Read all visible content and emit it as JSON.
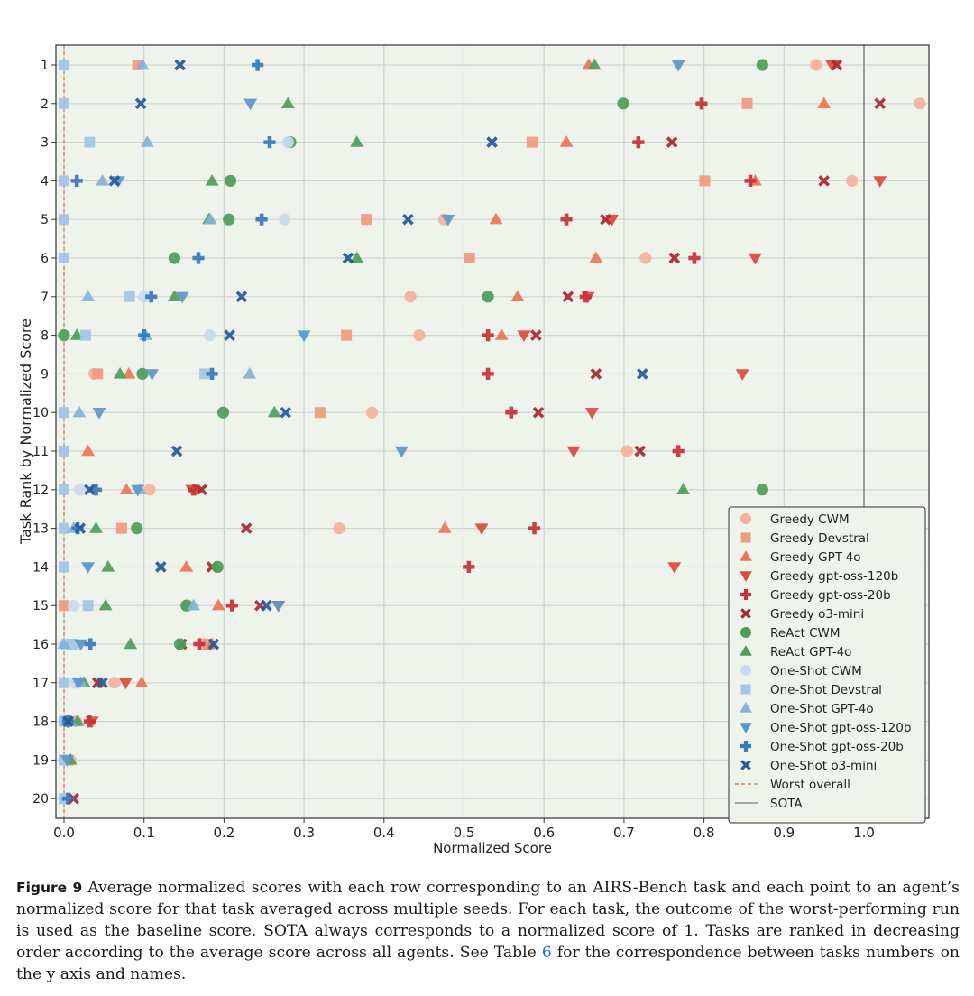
{
  "chart_data": {
    "type": "scatter",
    "xlabel": "Normalized Score",
    "ylabel": "Task Rank by Normalized Score",
    "xlim": [
      -0.01,
      1.08
    ],
    "x_ticks": [
      "0.0",
      "0.1",
      "0.2",
      "0.3",
      "0.4",
      "0.5",
      "0.6",
      "0.7",
      "0.8",
      "0.9",
      "1.0"
    ],
    "y_ticks": [
      "1",
      "2",
      "3",
      "4",
      "5",
      "6",
      "7",
      "8",
      "9",
      "10",
      "11",
      "12",
      "13",
      "14",
      "15",
      "16",
      "17",
      "18",
      "19",
      "20"
    ],
    "grid": true,
    "legend_position": "bottom-right",
    "reference_lines": [
      {
        "name": "Worst overall",
        "x": 0.0,
        "style": "dashed",
        "color": "#e0604a"
      },
      {
        "name": "SOTA",
        "x": 1.0,
        "style": "solid",
        "color": "#7a7a7a"
      }
    ],
    "series": [
      {
        "name": "Greedy CWM",
        "marker": "circle",
        "color": "#f4b29a",
        "points": [
          [
            0.94,
            1
          ],
          [
            1.07,
            2
          ],
          [
            0.985,
            4
          ],
          [
            0.475,
            5
          ],
          [
            0.727,
            6
          ],
          [
            0.433,
            7
          ],
          [
            0.444,
            8
          ],
          [
            0.038,
            9
          ],
          [
            0.385,
            10
          ],
          [
            0.704,
            11
          ],
          [
            0.107,
            12
          ],
          [
            0.344,
            13
          ],
          [
            0.155,
            15
          ],
          [
            0.175,
            16
          ],
          [
            0.063,
            17
          ],
          [
            0.015,
            18
          ],
          [
            0.008,
            19
          ]
        ]
      },
      {
        "name": "Greedy Devstral",
        "marker": "square",
        "color": "#f09a7e",
        "points": [
          [
            0.092,
            1
          ],
          [
            0.854,
            2
          ],
          [
            0.585,
            3
          ],
          [
            0.801,
            4
          ],
          [
            0.378,
            5
          ],
          [
            0.507,
            6
          ],
          [
            0.353,
            8
          ],
          [
            0.042,
            9
          ],
          [
            0.32,
            10
          ],
          [
            0.072,
            13
          ],
          [
            0.0,
            15
          ],
          [
            0.18,
            16
          ]
        ]
      },
      {
        "name": "Greedy GPT-4o",
        "marker": "triangle-up",
        "color": "#ee7558",
        "points": [
          [
            0.656,
            1
          ],
          [
            0.95,
            2
          ],
          [
            0.628,
            3
          ],
          [
            0.864,
            4
          ],
          [
            0.54,
            5
          ],
          [
            0.665,
            6
          ],
          [
            0.567,
            7
          ],
          [
            0.547,
            8
          ],
          [
            0.081,
            9
          ],
          [
            0.03,
            11
          ],
          [
            0.078,
            12
          ],
          [
            0.476,
            13
          ],
          [
            0.153,
            14
          ],
          [
            0.193,
            15
          ],
          [
            0.185,
            16
          ],
          [
            0.097,
            17
          ]
        ]
      },
      {
        "name": "Greedy gpt-oss-120b",
        "marker": "triangle-down",
        "color": "#dd4a3a",
        "points": [
          [
            0.96,
            1
          ],
          [
            1.02,
            4
          ],
          [
            0.685,
            5
          ],
          [
            0.864,
            6
          ],
          [
            0.655,
            7
          ],
          [
            0.575,
            8
          ],
          [
            0.848,
            9
          ],
          [
            0.66,
            10
          ],
          [
            0.637,
            11
          ],
          [
            0.16,
            12
          ],
          [
            0.522,
            13
          ],
          [
            0.763,
            14
          ],
          [
            0.268,
            15
          ],
          [
            0.077,
            17
          ],
          [
            0.035,
            18
          ]
        ]
      },
      {
        "name": "Greedy gpt-oss-20b",
        "marker": "plus",
        "color": "#c8313a",
        "points": [
          [
            0.797,
            2
          ],
          [
            0.718,
            3
          ],
          [
            0.858,
            4
          ],
          [
            0.628,
            5
          ],
          [
            0.788,
            6
          ],
          [
            0.652,
            7
          ],
          [
            0.53,
            8
          ],
          [
            0.53,
            9
          ],
          [
            0.559,
            10
          ],
          [
            0.768,
            11
          ],
          [
            0.163,
            12
          ],
          [
            0.588,
            13
          ],
          [
            0.506,
            14
          ],
          [
            0.21,
            15
          ],
          [
            0.169,
            16
          ],
          [
            0.032,
            18
          ]
        ]
      },
      {
        "name": "Greedy o3-mini",
        "marker": "x",
        "color": "#a8282f",
        "points": [
          [
            0.966,
            1
          ],
          [
            1.02,
            2
          ],
          [
            0.76,
            3
          ],
          [
            0.95,
            4
          ],
          [
            0.677,
            5
          ],
          [
            0.763,
            6
          ],
          [
            0.63,
            7
          ],
          [
            0.59,
            8
          ],
          [
            0.665,
            9
          ],
          [
            0.593,
            10
          ],
          [
            0.72,
            11
          ],
          [
            0.172,
            12
          ],
          [
            0.228,
            13
          ],
          [
            0.185,
            14
          ],
          [
            0.245,
            15
          ],
          [
            0.147,
            16
          ],
          [
            0.042,
            17
          ],
          [
            0.012,
            20
          ]
        ]
      },
      {
        "name": "ReAct CWM",
        "marker": "circle",
        "color": "#4c9e5a",
        "points": [
          [
            0.873,
            1
          ],
          [
            0.699,
            2
          ],
          [
            0.283,
            3
          ],
          [
            0.208,
            4
          ],
          [
            0.206,
            5
          ],
          [
            0.138,
            6
          ],
          [
            0.53,
            7
          ],
          [
            0.0,
            8
          ],
          [
            0.098,
            9
          ],
          [
            0.199,
            10
          ],
          [
            0.873,
            12
          ],
          [
            0.091,
            13
          ],
          [
            0.192,
            14
          ],
          [
            0.153,
            15
          ],
          [
            0.145,
            16
          ]
        ]
      },
      {
        "name": "ReAct GPT-4o",
        "marker": "triangle-up",
        "color": "#4c9e5a",
        "points": [
          [
            0.663,
            1
          ],
          [
            0.28,
            2
          ],
          [
            0.366,
            3
          ],
          [
            0.185,
            4
          ],
          [
            0.181,
            5
          ],
          [
            0.366,
            6
          ],
          [
            0.138,
            7
          ],
          [
            0.016,
            8
          ],
          [
            0.07,
            9
          ],
          [
            0.263,
            10
          ],
          [
            0.774,
            12
          ],
          [
            0.04,
            13
          ],
          [
            0.055,
            14
          ],
          [
            0.052,
            15
          ],
          [
            0.083,
            16
          ],
          [
            0.025,
            17
          ],
          [
            0.017,
            18
          ],
          [
            0.008,
            19
          ]
        ]
      },
      {
        "name": "One-Shot CWM",
        "marker": "circle",
        "color": "#c9dcee",
        "points": [
          [
            0.0,
            1
          ],
          [
            0.28,
            3
          ],
          [
            0.276,
            5
          ],
          [
            0.1,
            7
          ],
          [
            0.182,
            8
          ],
          [
            0.0,
            10
          ],
          [
            0.02,
            12
          ],
          [
            0.0,
            13
          ],
          [
            0.012,
            15
          ],
          [
            0.0,
            16
          ],
          [
            0.013,
            17
          ],
          [
            0.0,
            18
          ],
          [
            0.0,
            19
          ],
          [
            0.0,
            20
          ]
        ]
      },
      {
        "name": "One-Shot Devstral",
        "marker": "square",
        "color": "#a3c6e3",
        "points": [
          [
            0.0,
            1
          ],
          [
            0.0,
            2
          ],
          [
            0.032,
            3
          ],
          [
            0.0,
            4
          ],
          [
            0.0,
            5
          ],
          [
            0.0,
            6
          ],
          [
            0.082,
            7
          ],
          [
            0.027,
            8
          ],
          [
            0.176,
            9
          ],
          [
            0.0,
            10
          ],
          [
            0.0,
            11
          ],
          [
            0.0,
            12
          ],
          [
            0.0,
            13
          ],
          [
            0.0,
            14
          ],
          [
            0.03,
            15
          ],
          [
            0.01,
            16
          ],
          [
            0.0,
            17
          ],
          [
            0.0,
            18
          ],
          [
            0.0,
            19
          ],
          [
            0.0,
            20
          ]
        ]
      },
      {
        "name": "One-Shot GPT-4o",
        "marker": "triangle-up",
        "color": "#84b3d8",
        "points": [
          [
            0.098,
            1
          ],
          [
            0.104,
            3
          ],
          [
            0.048,
            4
          ],
          [
            0.183,
            5
          ],
          [
            0.03,
            7
          ],
          [
            0.102,
            8
          ],
          [
            0.232,
            9
          ],
          [
            0.019,
            10
          ],
          [
            0.095,
            12
          ],
          [
            0.012,
            13
          ],
          [
            0.162,
            15
          ],
          [
            0.0,
            16
          ],
          [
            0.021,
            17
          ],
          [
            0.008,
            18
          ]
        ]
      },
      {
        "name": "One-Shot gpt-oss-120b",
        "marker": "triangle-down",
        "color": "#5f96c8",
        "points": [
          [
            0.768,
            1
          ],
          [
            0.233,
            2
          ],
          [
            0.068,
            4
          ],
          [
            0.48,
            5
          ],
          [
            0.148,
            7
          ],
          [
            0.3,
            8
          ],
          [
            0.11,
            9
          ],
          [
            0.044,
            10
          ],
          [
            0.422,
            11
          ],
          [
            0.092,
            12
          ],
          [
            0.03,
            14
          ],
          [
            0.268,
            15
          ],
          [
            0.021,
            16
          ],
          [
            0.018,
            17
          ],
          [
            0.005,
            18
          ],
          [
            0.004,
            19
          ]
        ]
      },
      {
        "name": "One-Shot gpt-oss-20b",
        "marker": "plus",
        "color": "#3a78b8",
        "points": [
          [
            0.242,
            1
          ],
          [
            0.257,
            3
          ],
          [
            0.016,
            4
          ],
          [
            0.247,
            5
          ],
          [
            0.168,
            6
          ],
          [
            0.109,
            7
          ],
          [
            0.1,
            8
          ],
          [
            0.185,
            9
          ],
          [
            0.04,
            12
          ],
          [
            0.017,
            13
          ],
          [
            0.033,
            16
          ],
          [
            0.005,
            18
          ],
          [
            0.005,
            20
          ]
        ]
      },
      {
        "name": "One-Shot o3-mini",
        "marker": "x",
        "color": "#24589c",
        "points": [
          [
            0.145,
            1
          ],
          [
            0.096,
            2
          ],
          [
            0.535,
            3
          ],
          [
            0.063,
            4
          ],
          [
            0.43,
            5
          ],
          [
            0.355,
            6
          ],
          [
            0.222,
            7
          ],
          [
            0.207,
            8
          ],
          [
            0.723,
            9
          ],
          [
            0.277,
            10
          ],
          [
            0.141,
            11
          ],
          [
            0.032,
            12
          ],
          [
            0.02,
            13
          ],
          [
            0.121,
            14
          ],
          [
            0.253,
            15
          ],
          [
            0.187,
            16
          ],
          [
            0.048,
            17
          ],
          [
            0.005,
            18
          ]
        ]
      }
    ]
  },
  "caption": {
    "label": "Figure 9",
    "text_before_ref": "Average normalized scores with each row corresponding to an AIRS-Bench task and each point to an agent’s normalized score for that task averaged across multiple seeds. For each task, the outcome of the worst-performing run is used as the baseline score. SOTA always corresponds to a normalized score of 1. Tasks are ranked in decreasing order according to the average score across all agents. See Table",
    "ref": "6",
    "text_after_ref": "for the correspondence between tasks numbers on the y axis and names."
  }
}
